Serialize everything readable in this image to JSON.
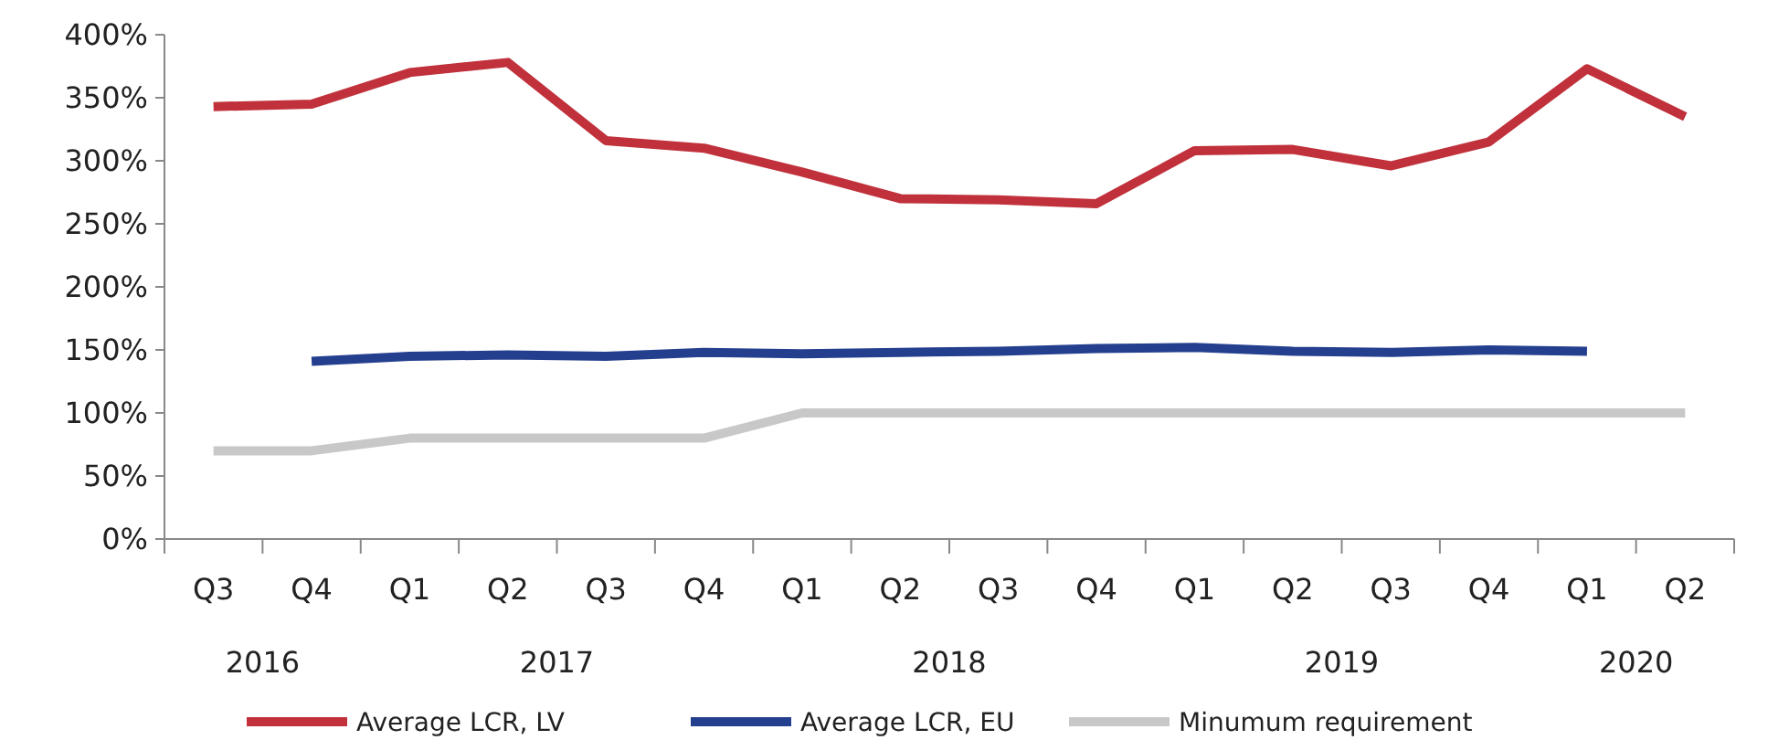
{
  "chart_data": {
    "type": "line",
    "categories": [
      "Q3",
      "Q4",
      "Q1",
      "Q2",
      "Q3",
      "Q4",
      "Q1",
      "Q2",
      "Q3",
      "Q4",
      "Q1",
      "Q2",
      "Q3",
      "Q4",
      "Q1",
      "Q2"
    ],
    "series": [
      {
        "name": "Average LCR, LV",
        "color": "#c0313b",
        "values": [
          343,
          345,
          370,
          378,
          316,
          310,
          291,
          270,
          269,
          266,
          308,
          309,
          296,
          315,
          373,
          335
        ]
      },
      {
        "name": "Average LCR, EU",
        "color": "#253f8f",
        "values": [
          null,
          141,
          145,
          146,
          145,
          148,
          147,
          148,
          149,
          151,
          152,
          149,
          148,
          150,
          149,
          null
        ]
      },
      {
        "name": "Minumum requirement",
        "color": "#c8c8c8",
        "values": [
          70,
          70,
          80,
          80,
          80,
          80,
          100,
          100,
          100,
          100,
          100,
          100,
          100,
          100,
          100,
          100
        ]
      }
    ],
    "ylim": [
      0,
      400
    ],
    "yticks": [
      {
        "value": 0,
        "label": "0%"
      },
      {
        "value": 50,
        "label": "50%"
      },
      {
        "value": 100,
        "label": "100%"
      },
      {
        "value": 150,
        "label": "150%"
      },
      {
        "value": 200,
        "label": "200%"
      },
      {
        "value": 250,
        "label": "250%"
      },
      {
        "value": 300,
        "label": "300%"
      },
      {
        "value": 350,
        "label": "350%"
      },
      {
        "value": 400,
        "label": "400%"
      }
    ],
    "annotations": [
      "2016",
      "2017",
      "2018",
      "2019",
      "2020"
    ],
    "grid": false,
    "legend": "bottom",
    "line_style": "solid"
  }
}
